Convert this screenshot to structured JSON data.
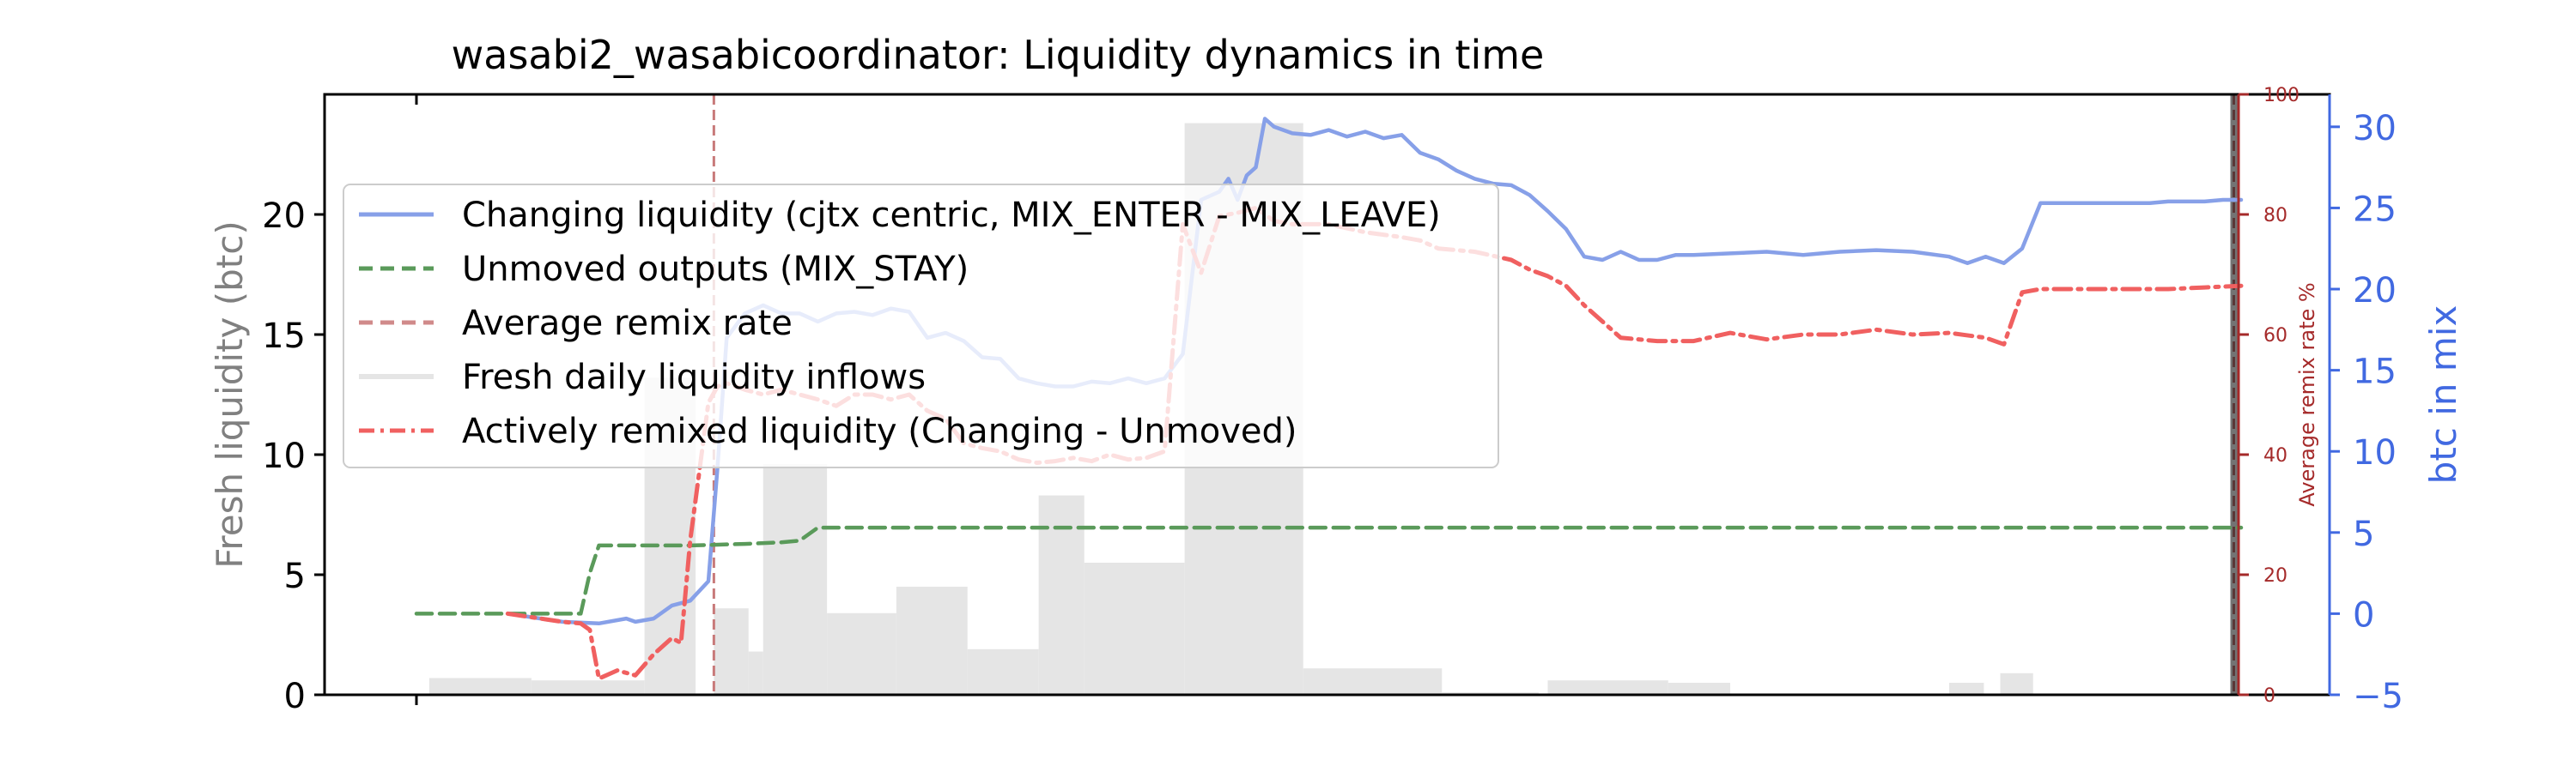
{
  "chart_data": {
    "type": "line",
    "title": "wasabi2_wasabicoordinator: Liquidity dynamics in time",
    "left_axis": {
      "label": "Fresh liquidity (btc)",
      "ylim": [
        0,
        25
      ],
      "ticks": [
        0,
        5,
        10,
        15,
        20
      ],
      "color": "#808080"
    },
    "right_axis_remix": {
      "label": "Average remix rate %",
      "ylim": [
        0,
        100
      ],
      "ticks": [
        0,
        20,
        40,
        60,
        80,
        100
      ],
      "color": "#a52a2a"
    },
    "right_axis_mix": {
      "label": "btc in mix",
      "ylim": [
        -5,
        32
      ],
      "ticks": [
        -5,
        0,
        5,
        10,
        15,
        20,
        25,
        30
      ],
      "color": "#4169e1"
    },
    "x_range": [
      0,
      100
    ],
    "grid": false,
    "legend_position": "upper-left",
    "legend": [
      {
        "label": "Changing liquidity (cjtx centric, MIX_ENTER - MIX_LEAVE)",
        "color": "#87a0e8",
        "style": "solid"
      },
      {
        "label": "Unmoved outputs (MIX_STAY)",
        "color": "#5a9a5a",
        "style": "dashed"
      },
      {
        "label": "Average remix rate",
        "color": "#d08a8a",
        "style": "dashed"
      },
      {
        "label": "Fresh daily liquidity inflows",
        "color": "#e5e5e5",
        "style": "solid"
      },
      {
        "label": "Actively remixed liquidity (Changing - Unmoved)",
        "color": "#f06060",
        "style": "dashdot"
      }
    ],
    "inflow_bars": [
      {
        "x0": 0.7,
        "x1": 6.3,
        "value": 0.7
      },
      {
        "x0": 6.3,
        "x1": 12.5,
        "value": 0.6
      },
      {
        "x0": 12.5,
        "x1": 15.3,
        "value": 13.2
      },
      {
        "x0": 16.3,
        "x1": 18.2,
        "value": 3.6
      },
      {
        "x0": 18.2,
        "x1": 19.0,
        "value": 1.8
      },
      {
        "x0": 19.0,
        "x1": 22.5,
        "value": 9.6
      },
      {
        "x0": 22.5,
        "x1": 26.3,
        "value": 3.4
      },
      {
        "x0": 26.3,
        "x1": 30.2,
        "value": 4.5
      },
      {
        "x0": 30.2,
        "x1": 34.1,
        "value": 1.9
      },
      {
        "x0": 34.1,
        "x1": 36.6,
        "value": 8.3
      },
      {
        "x0": 36.6,
        "x1": 42.1,
        "value": 5.5
      },
      {
        "x0": 42.1,
        "x1": 48.6,
        "value": 23.8
      },
      {
        "x0": 48.6,
        "x1": 56.2,
        "value": 1.1
      },
      {
        "x0": 56.2,
        "x1": 61.5,
        "value": 0.1
      },
      {
        "x0": 62.0,
        "x1": 68.6,
        "value": 0.6
      },
      {
        "x0": 68.6,
        "x1": 72.0,
        "value": 0.5
      },
      {
        "x0": 72.0,
        "x1": 76.0,
        "value": 0.05
      },
      {
        "x0": 76.0,
        "x1": 84.0,
        "value": 0.05
      },
      {
        "x0": 84.0,
        "x1": 85.9,
        "value": 0.5
      },
      {
        "x0": 86.8,
        "x1": 88.6,
        "value": 0.9
      }
    ],
    "series": [
      {
        "name": "Changing liquidity (cjtx centric, MIX_ENTER - MIX_LEAVE)",
        "axis": "btc in mix",
        "x": [
          5,
          8,
          10,
          11.5,
          12,
          13,
          14,
          15,
          16,
          16.5,
          17,
          18,
          19,
          20,
          21,
          22,
          23,
          24,
          25,
          26,
          27,
          28,
          29,
          30,
          31,
          32,
          33,
          34,
          35,
          36,
          37,
          38,
          39,
          40,
          41,
          42,
          43,
          44,
          44.5,
          45,
          45.5,
          46,
          46.5,
          47,
          48,
          49,
          50,
          51,
          52,
          53,
          54,
          55,
          56,
          57,
          58,
          59,
          60,
          61,
          62,
          63,
          64,
          65,
          66,
          67,
          68,
          69,
          70,
          72,
          74,
          76,
          78,
          80,
          82,
          84,
          85,
          86,
          87,
          88,
          89,
          90,
          91,
          92,
          93,
          94,
          95,
          96,
          97,
          98,
          99,
          100
        ],
        "y": [
          0,
          -0.5,
          -0.6,
          -0.3,
          -0.5,
          -0.3,
          0.5,
          0.8,
          2,
          9,
          17,
          18.5,
          19,
          18.5,
          18.5,
          18,
          18.5,
          18.6,
          18.4,
          18.8,
          18.6,
          17,
          17.3,
          16.8,
          15.8,
          15.7,
          14.5,
          14.2,
          14,
          14,
          14.3,
          14.2,
          14.5,
          14.2,
          14.5,
          16,
          25.5,
          26,
          26.8,
          25.5,
          27,
          27.5,
          30.5,
          30,
          29.6,
          29.5,
          29.8,
          29.4,
          29.7,
          29.3,
          29.5,
          28.4,
          28,
          27.3,
          26.8,
          26.5,
          26.4,
          25.8,
          24.8,
          23.7,
          22,
          21.8,
          22.3,
          21.8,
          21.8,
          22.1,
          22.1,
          22.2,
          22.3,
          22.1,
          22.3,
          22.4,
          22.3,
          22,
          21.6,
          22,
          21.6,
          22.5,
          25.3,
          25.3,
          25.3,
          25.3,
          25.3,
          25.3,
          25.3,
          25.4,
          25.4,
          25.4,
          25.5,
          25.5
        ]
      },
      {
        "name": "Unmoved outputs (MIX_STAY)",
        "axis": "btc in mix",
        "x": [
          0,
          9,
          9.5,
          10,
          15,
          18,
          20,
          21,
          22,
          100
        ],
        "y": [
          0,
          0,
          2.5,
          4.2,
          4.2,
          4.3,
          4.4,
          4.5,
          5.3,
          5.3
        ]
      },
      {
        "name": "Actively remixed liquidity (Changing - Unmoved)",
        "axis": "btc in mix",
        "x": [
          5,
          8,
          9,
          9.5,
          10,
          11,
          12,
          13,
          14,
          14.5,
          15,
          16,
          16.5,
          17,
          18,
          19,
          20,
          21,
          22,
          23,
          24,
          25,
          26,
          27,
          28,
          29,
          30,
          31,
          32,
          33,
          34,
          35,
          36,
          37,
          38,
          39,
          40,
          41,
          42,
          43,
          44,
          45,
          46,
          47,
          48,
          50,
          52,
          54,
          55,
          56,
          58,
          60,
          61,
          62,
          63,
          64,
          66,
          68,
          70,
          72,
          74,
          76,
          78,
          80,
          82,
          84,
          86,
          87,
          88,
          89,
          90,
          92,
          94,
          96,
          98,
          100
        ],
        "y": [
          0,
          -0.5,
          -0.6,
          -1,
          -4,
          -3.5,
          -3.8,
          -2.5,
          -1.5,
          -1.8,
          4.5,
          13,
          14,
          14.2,
          13.8,
          13.5,
          13.8,
          13.5,
          13.2,
          12.8,
          13.5,
          13.5,
          13.2,
          13.5,
          12.5,
          12,
          10.5,
          10.2,
          10,
          9.5,
          9.3,
          9.4,
          9.6,
          9.4,
          9.8,
          9.5,
          9.6,
          10,
          24,
          21,
          24.5,
          24.7,
          25,
          24.2,
          24,
          24,
          23.5,
          23.2,
          23,
          22.5,
          22.3,
          21.8,
          21.2,
          20.8,
          20.2,
          19,
          17,
          16.8,
          16.8,
          17.3,
          16.9,
          17.2,
          17.2,
          17.5,
          17.2,
          17.3,
          17,
          16.6,
          19.8,
          20,
          20,
          20,
          20,
          20,
          20.1,
          20.2
        ]
      }
    ],
    "remix_rate_markers": [
      {
        "x": 16.3,
        "label": "Average remix rate"
      },
      {
        "x": 99.6,
        "label": "Average remix rate"
      }
    ]
  }
}
